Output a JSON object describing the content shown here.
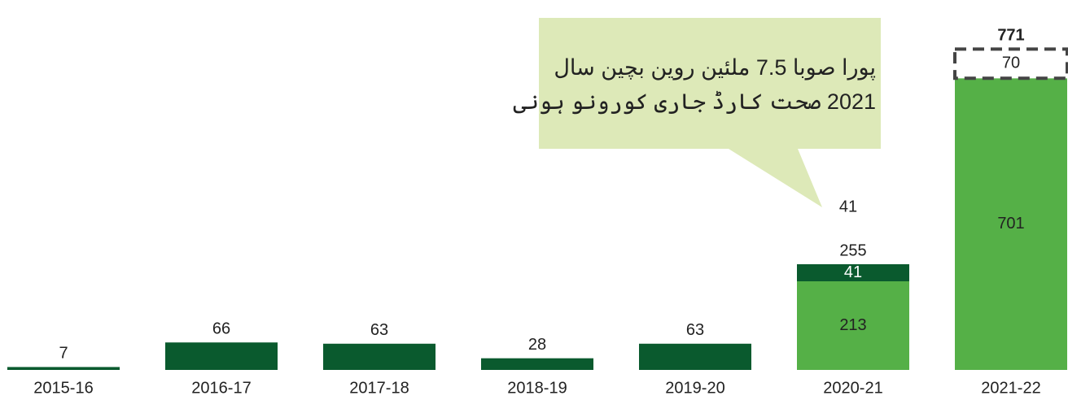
{
  "chart_data": {
    "type": "stacked-bar",
    "categories": [
      "2015-16",
      "2016-17",
      "2017-18",
      "2018-19",
      "2019-20",
      "2020-21",
      "2021-22"
    ],
    "series": [
      {
        "color": "#55b047",
        "values": [
          null,
          null,
          null,
          null,
          null,
          213,
          701
        ]
      },
      {
        "color": "#0a5a2e",
        "values": [
          7,
          66,
          63,
          28,
          63,
          41,
          null
        ]
      },
      {
        "color": "#ffffff",
        "stroke": "#444444",
        "dashed": true,
        "values": [
          null,
          null,
          null,
          null,
          null,
          null,
          70
        ]
      }
    ],
    "totals": [
      null,
      null,
      null,
      null,
      null,
      255,
      771
    ],
    "extra_label": "41",
    "callout": [
      "پورا صوبا 7.5 ملئین روین بچین سال",
      "2021 صحت کارڈ جاری کورونو ہونی"
    ],
    "ylim": [
      0,
      850
    ]
  }
}
